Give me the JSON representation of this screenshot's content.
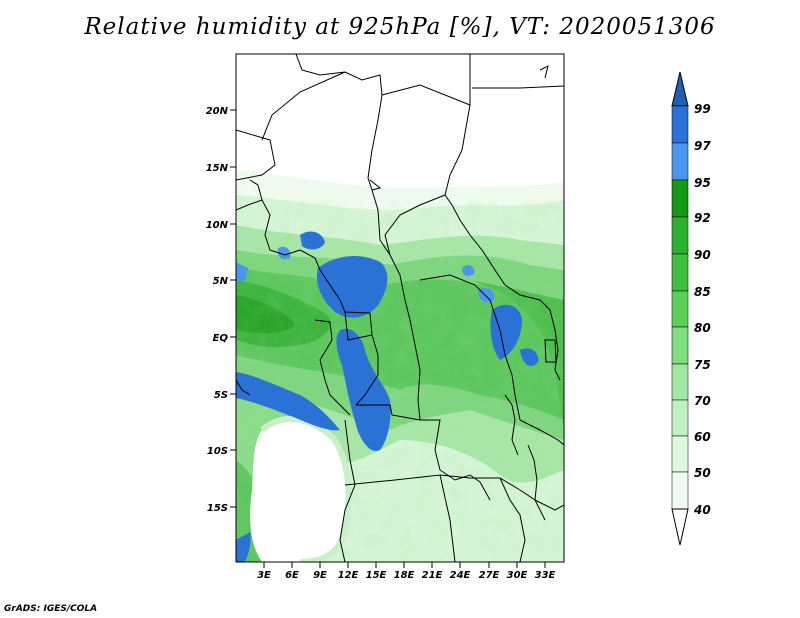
{
  "title": "Relative humidity at 925hPa [%], VT: 2020051306",
  "credit": "GrADS: IGES/COLA",
  "map": {
    "lon_range": [
      0,
      35
    ],
    "lat_range": [
      -20,
      25
    ],
    "lat_ticks": [
      "20N",
      "15N",
      "10N",
      "5N",
      "EQ",
      "5S",
      "10S",
      "15S"
    ],
    "lon_ticks": [
      "3E",
      "6E",
      "9E",
      "12E",
      "15E",
      "18E",
      "21E",
      "24E",
      "27E",
      "30E",
      "33E"
    ]
  },
  "colorbar": {
    "levels": [
      "99",
      "97",
      "95",
      "92",
      "90",
      "85",
      "80",
      "75",
      "70",
      "60",
      "50",
      "40"
    ],
    "colors": {
      "above_99": "#1f5fb5",
      "97_99": "#2a72d6",
      "95_97": "#4a98ee",
      "92_95": "#179b17",
      "90_92": "#2db02d",
      "85_90": "#3fbf3f",
      "80_85": "#5ad25a",
      "75_80": "#7ede7e",
      "70_75": "#a2e8a2",
      "60_70": "#c2f0c2",
      "50_60": "#def8de",
      "40_50": "#f0fcf0",
      "below_40": "#ffffff"
    }
  }
}
